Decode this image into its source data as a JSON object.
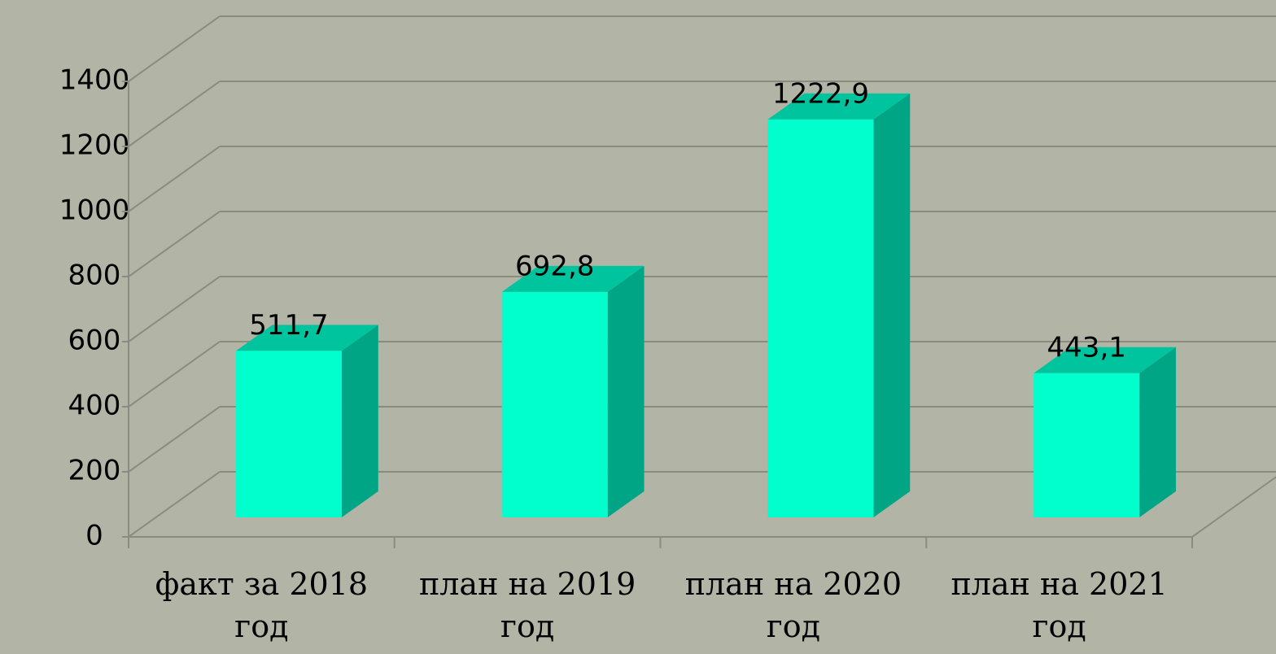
{
  "chart_data": {
    "type": "bar3d",
    "categories": [
      "факт за 2018 год",
      "план на 2019 год",
      "план на 2020 год",
      "план на 2021 год"
    ],
    "values": [
      511.7,
      692.8,
      1222.9,
      443.1
    ],
    "value_labels": [
      "511,7",
      "692,8",
      "1222,9",
      "443,1"
    ],
    "ylim": [
      0,
      1400
    ],
    "yticks": [
      0,
      200,
      400,
      600,
      800,
      1000,
      1200,
      1400
    ],
    "grid": true,
    "colors": {
      "front": "#00ffcc",
      "side": "#00a585",
      "top": "#00c49e"
    }
  }
}
